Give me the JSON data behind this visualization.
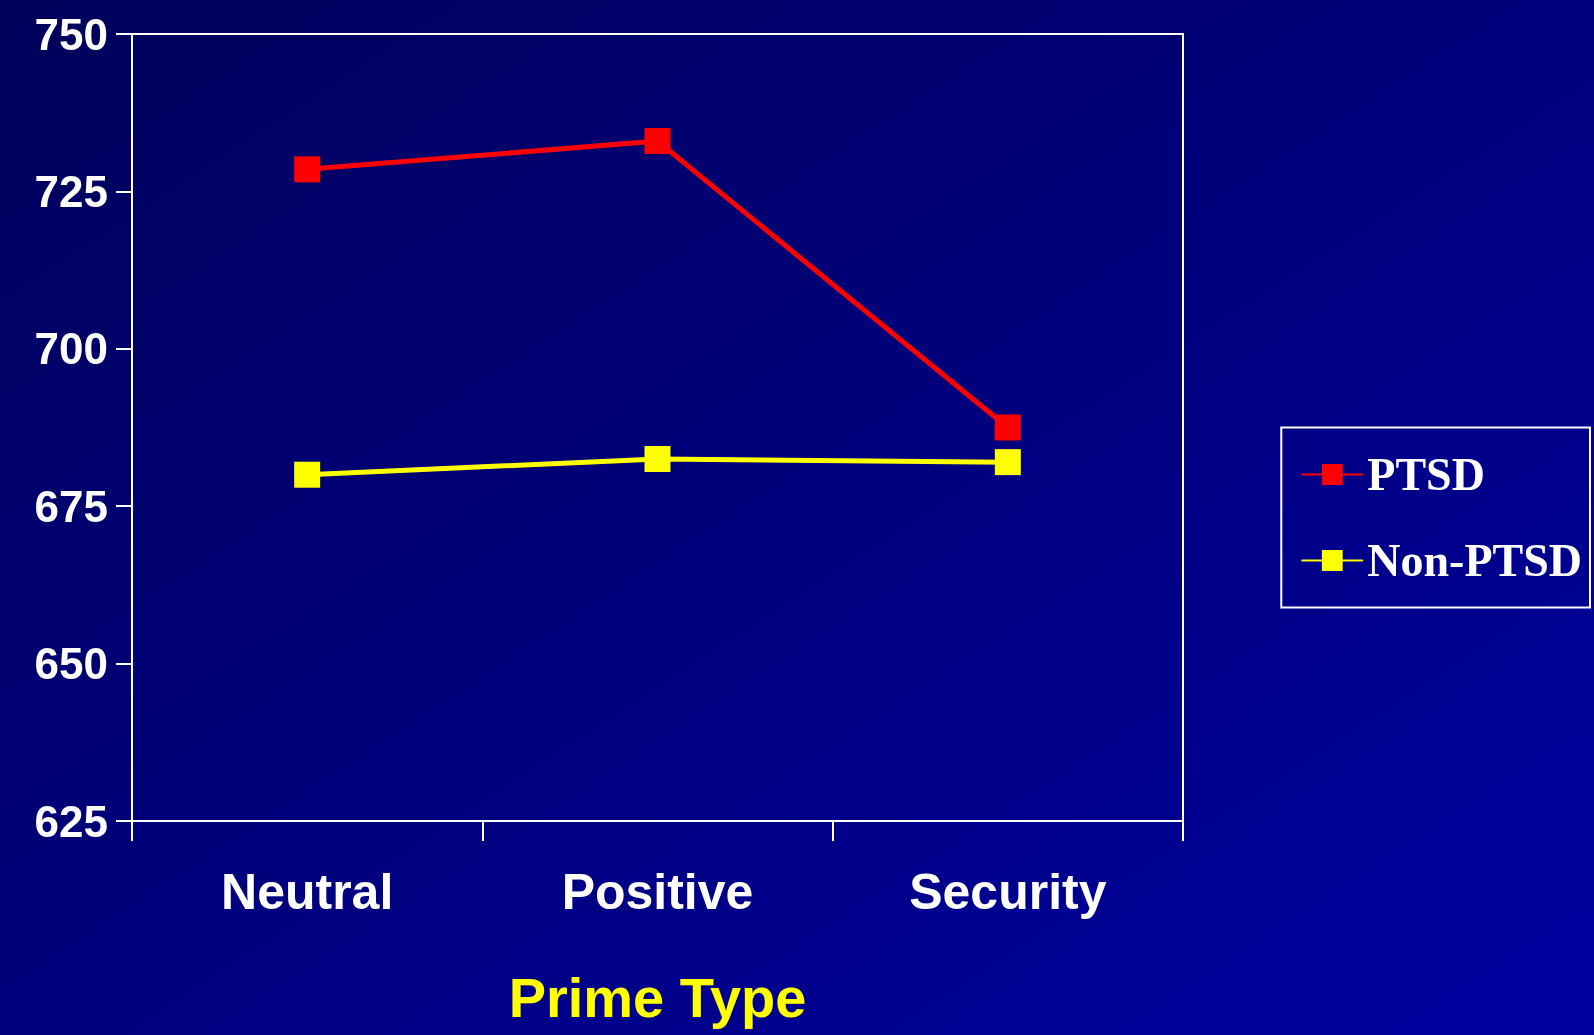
{
  "chart_data": {
    "type": "line",
    "xlabel": "Prime Type",
    "categories": [
      "Neutral",
      "Positive",
      "Security"
    ],
    "series": [
      {
        "name": "PTSD",
        "color": "#ff0000",
        "values": [
          728.5,
          733,
          687.5
        ]
      },
      {
        "name": "Non-PTSD",
        "color": "#ffff00",
        "values": [
          680,
          682.5,
          682
        ]
      }
    ],
    "ylim": [
      625,
      750
    ],
    "yticks": [
      625,
      650,
      675,
      700,
      725,
      750
    ],
    "grid": false,
    "legend": "right",
    "marker": "square",
    "line_style": "solid"
  }
}
